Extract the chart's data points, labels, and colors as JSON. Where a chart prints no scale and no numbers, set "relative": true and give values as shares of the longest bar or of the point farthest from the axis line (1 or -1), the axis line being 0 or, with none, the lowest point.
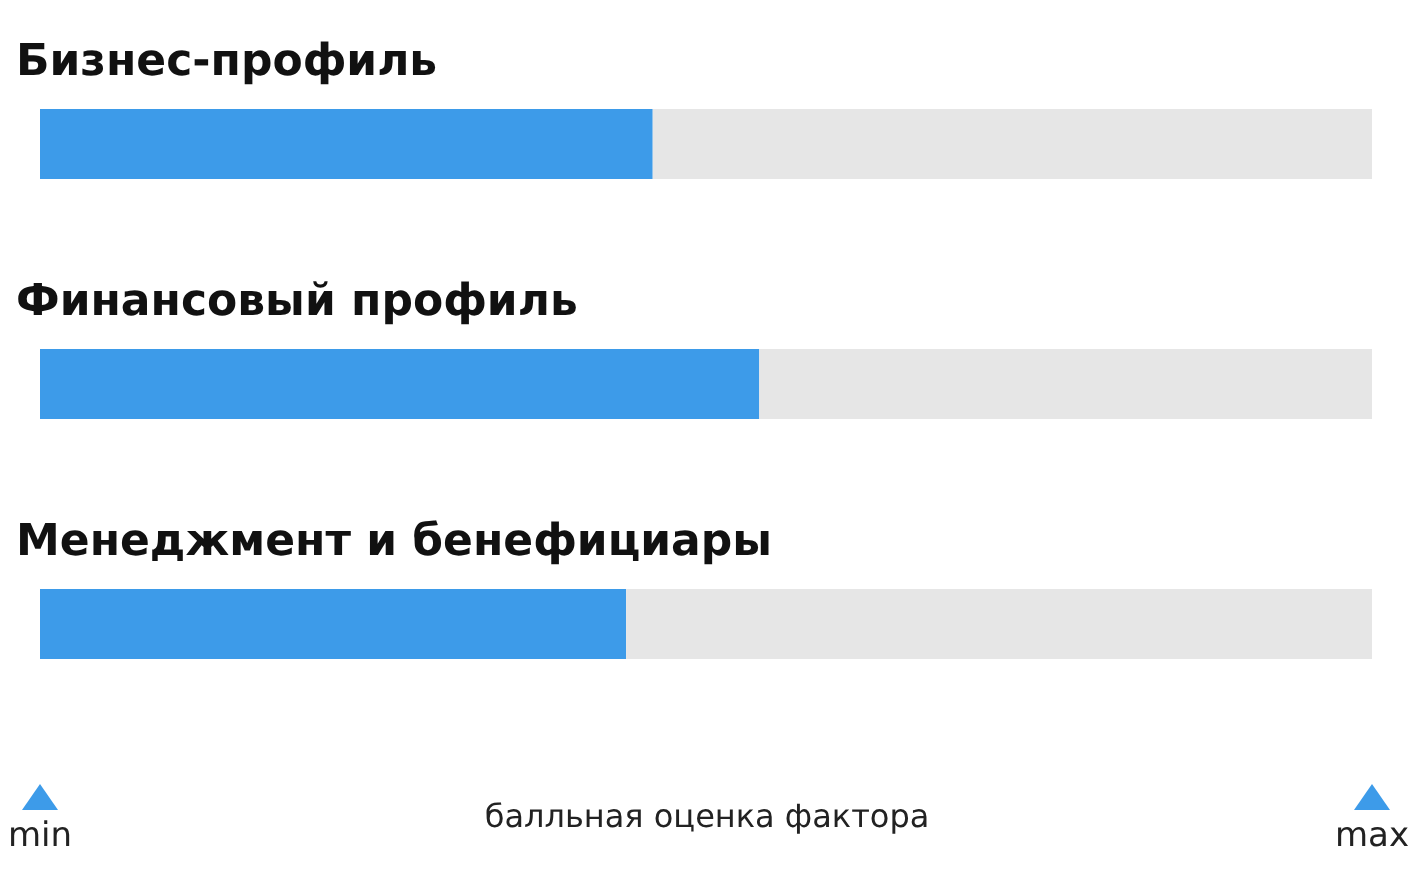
{
  "chart_data": {
    "type": "bar",
    "orientation": "horizontal",
    "stacked": true,
    "relative": true,
    "categories": [
      "Бизнес-профиль",
      "Финансовый профиль",
      "Менеджмент и бенефициары"
    ],
    "series": [
      {
        "color": "#3d9be9",
        "values": [
          0.46,
          0.54,
          0.44
        ]
      },
      {
        "color": "#e6e6e6",
        "values": [
          0.54,
          0.46,
          0.56
        ]
      }
    ],
    "xlabel": "балльная оценка фактора",
    "annotations": [
      "min",
      "max"
    ]
  }
}
